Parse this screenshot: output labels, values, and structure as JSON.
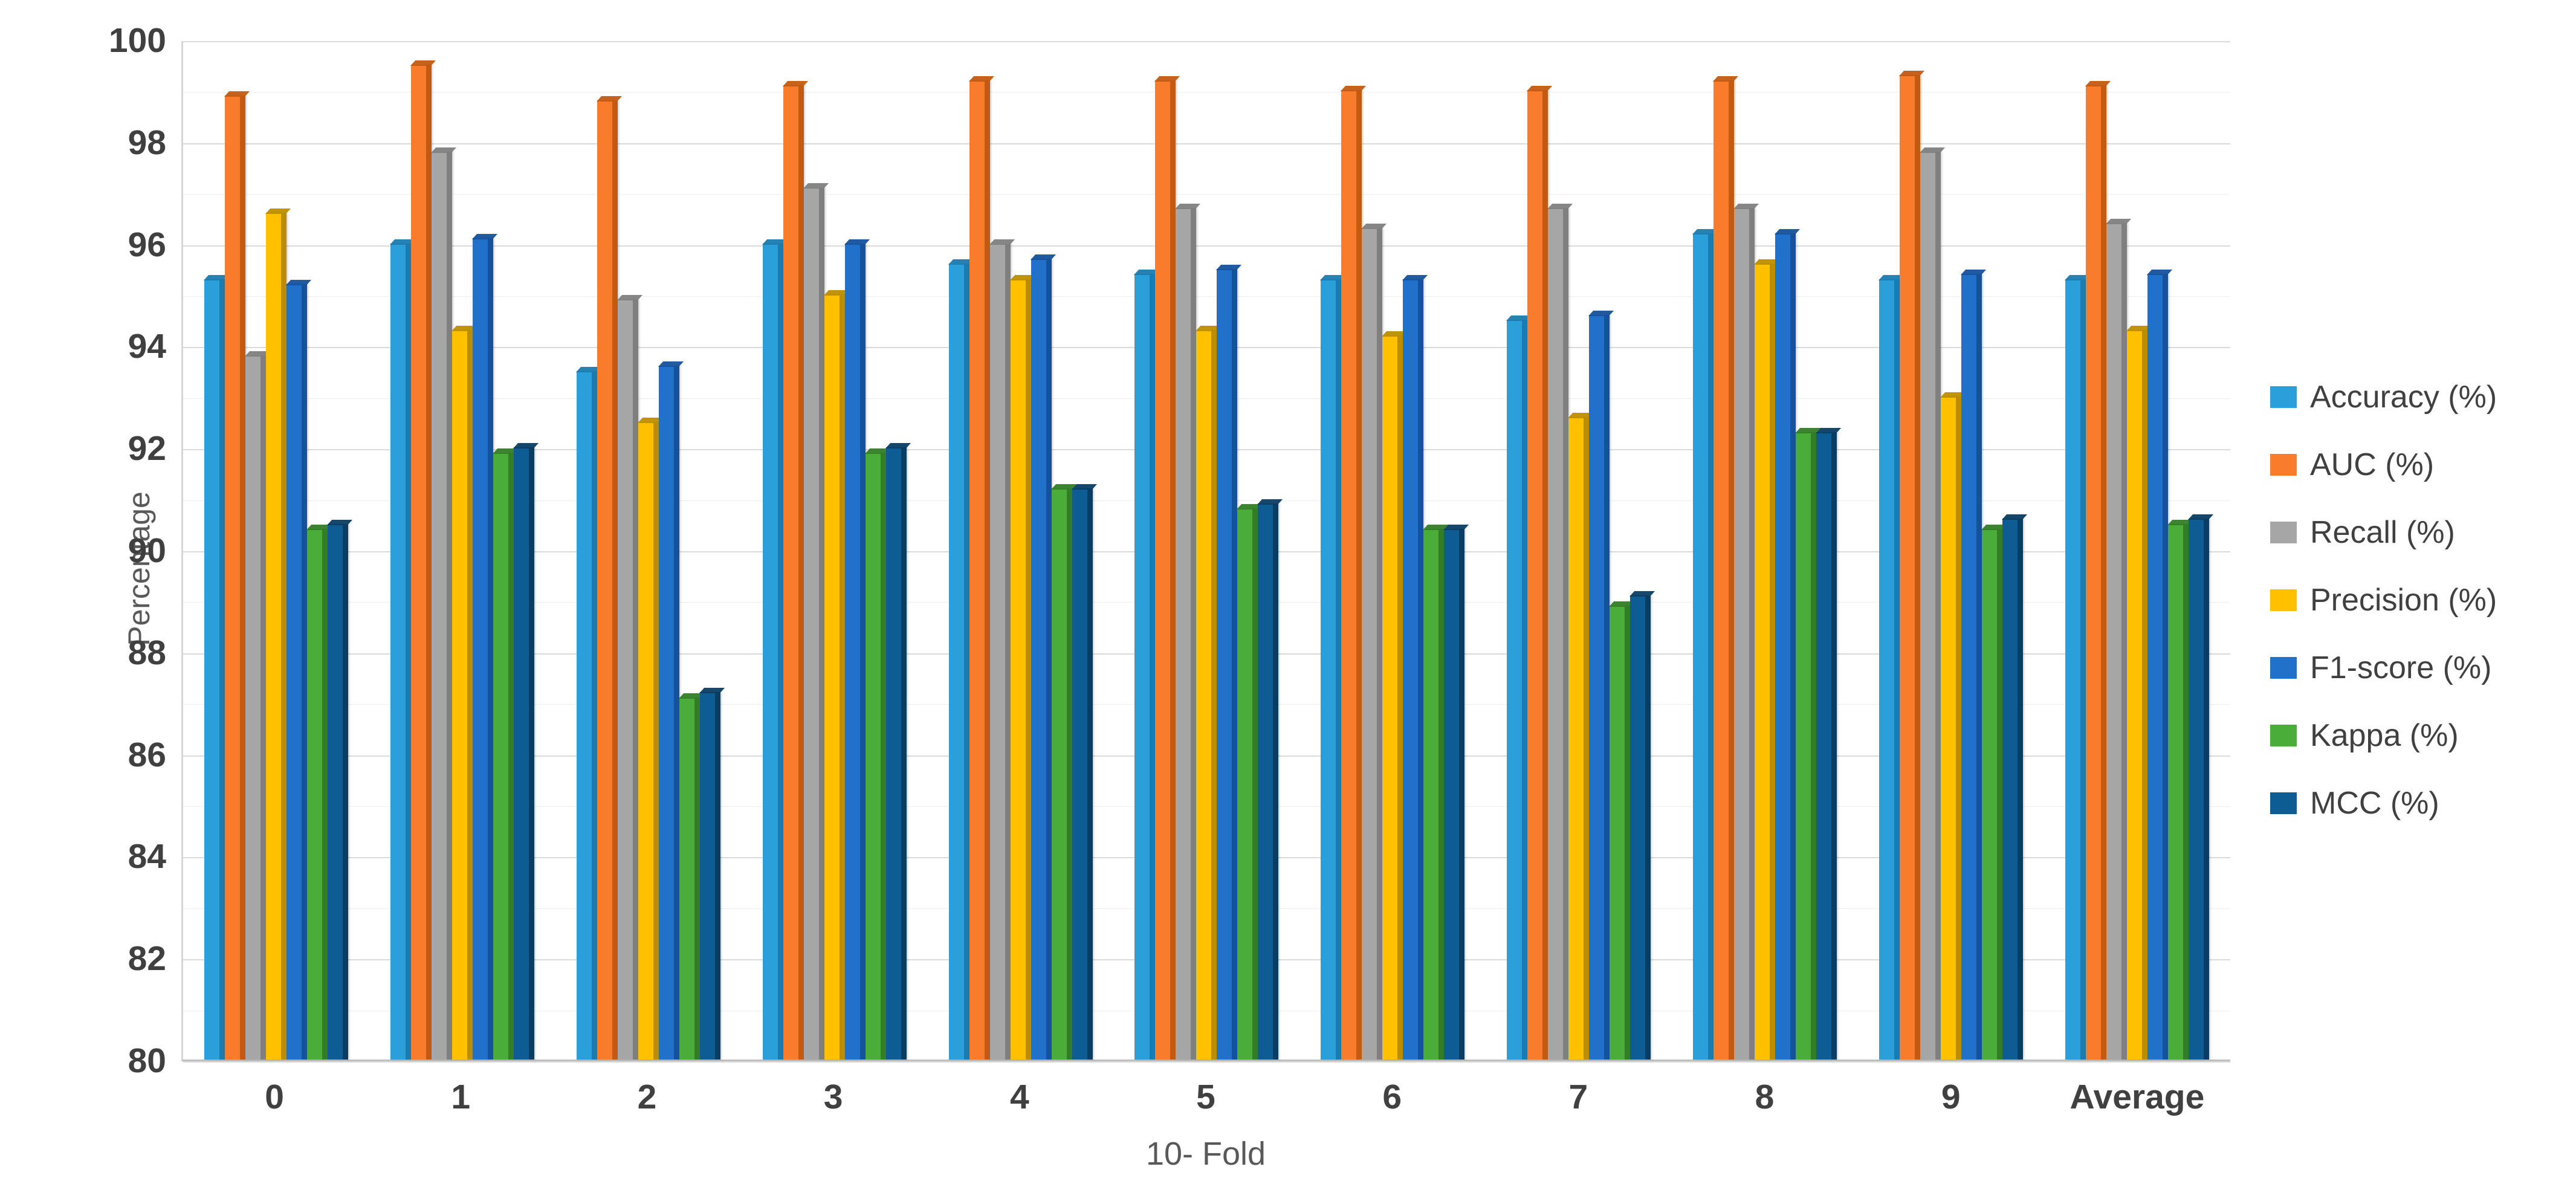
{
  "chart_data": {
    "type": "bar",
    "title": "",
    "xlabel": "10- Fold",
    "ylabel": "Percentage",
    "ylim": [
      80,
      100
    ],
    "ytick_step": 2,
    "minor_tick_step": 1,
    "grid": "horizontal",
    "legend_position": "right",
    "categories": [
      "0",
      "1",
      "2",
      "3",
      "4",
      "5",
      "6",
      "7",
      "8",
      "9",
      "Average"
    ],
    "series": [
      {
        "name": "Accuracy (%)",
        "color": "#2B9FD9",
        "side_color": "#1B7AAE",
        "values": [
          95.3,
          96.0,
          93.5,
          96.0,
          95.6,
          95.4,
          95.3,
          94.5,
          96.2,
          95.3,
          95.3
        ]
      },
      {
        "name": "AUC (%)",
        "color": "#F87C2C",
        "side_color": "#C25A12",
        "values": [
          98.9,
          99.5,
          98.8,
          99.1,
          99.2,
          99.2,
          99.0,
          99.0,
          99.2,
          99.3,
          99.1
        ]
      },
      {
        "name": "Recall (%)",
        "color": "#A6A6A6",
        "side_color": "#7F7F7F",
        "values": [
          93.8,
          97.8,
          94.9,
          97.1,
          96.0,
          96.7,
          96.3,
          96.7,
          96.7,
          97.8,
          96.4
        ]
      },
      {
        "name": "Precision (%)",
        "color": "#FFC000",
        "side_color": "#BC8D00",
        "values": [
          96.6,
          94.3,
          92.5,
          95.0,
          95.3,
          94.3,
          94.2,
          92.6,
          95.6,
          93.0,
          94.3
        ]
      },
      {
        "name": "F1-score (%)",
        "color": "#2170C9",
        "side_color": "#16519C",
        "values": [
          95.2,
          96.1,
          93.6,
          96.0,
          95.7,
          95.5,
          95.3,
          94.6,
          96.2,
          95.4,
          95.4
        ]
      },
      {
        "name": "Kappa (%)",
        "color": "#4AAD3A",
        "side_color": "#337D26",
        "values": [
          90.4,
          91.9,
          87.1,
          91.9,
          91.2,
          90.8,
          90.4,
          88.9,
          92.3,
          90.4,
          90.5
        ]
      },
      {
        "name": "MCC (%)",
        "color": "#0E5C94",
        "side_color": "#093D63",
        "values": [
          90.5,
          92.0,
          87.2,
          92.0,
          91.2,
          90.9,
          90.4,
          89.1,
          92.3,
          90.6,
          90.6
        ]
      }
    ]
  }
}
